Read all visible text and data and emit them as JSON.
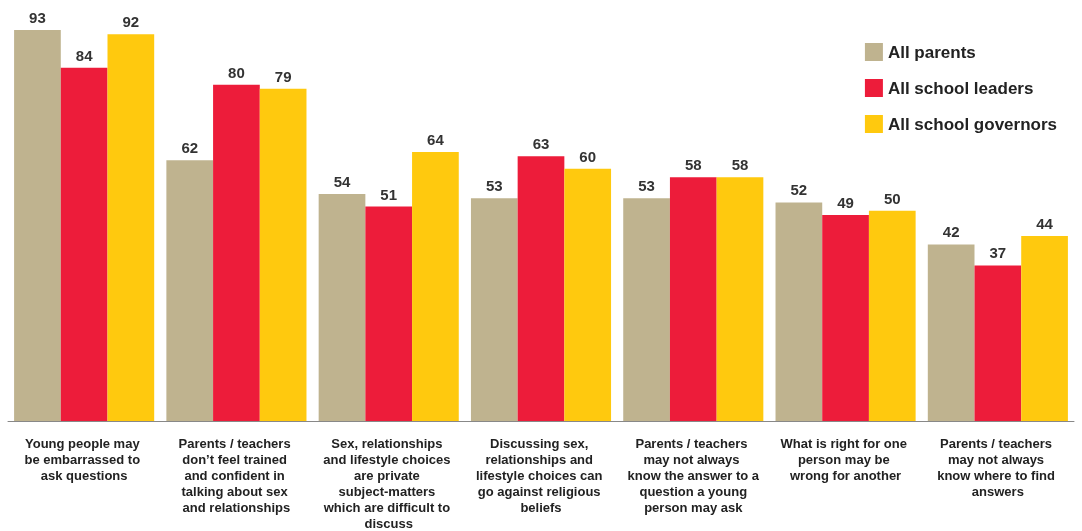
{
  "chart_data": {
    "type": "bar",
    "categories": [
      "Young people may be embarrassed to ask questions",
      "Parents / teachers don’t feel trained and confident in talking about sex and relationships",
      "Sex, relationships and lifestyle choices are private subject-matters which are difficult to discuss",
      "Discussing sex, relationships and lifestyle choices can go against religious beliefs",
      "Parents / teachers may not always know the answer to a question a young person may ask",
      "What is right for one person may be wrong for another",
      "Parents / teachers may not always know where to find answers"
    ],
    "series": [
      {
        "name": "All parents",
        "color": "#bfb38f",
        "values": [
          93,
          62,
          54,
          53,
          53,
          52,
          42
        ]
      },
      {
        "name": "All school leaders",
        "color": "#ed1c3a",
        "values": [
          84,
          80,
          51,
          63,
          58,
          49,
          37
        ]
      },
      {
        "name": "All school governors",
        "color": "#ffc90e",
        "values": [
          92,
          79,
          64,
          60,
          58,
          50,
          44
        ]
      }
    ],
    "data_labels": true,
    "legend": "top right"
  }
}
